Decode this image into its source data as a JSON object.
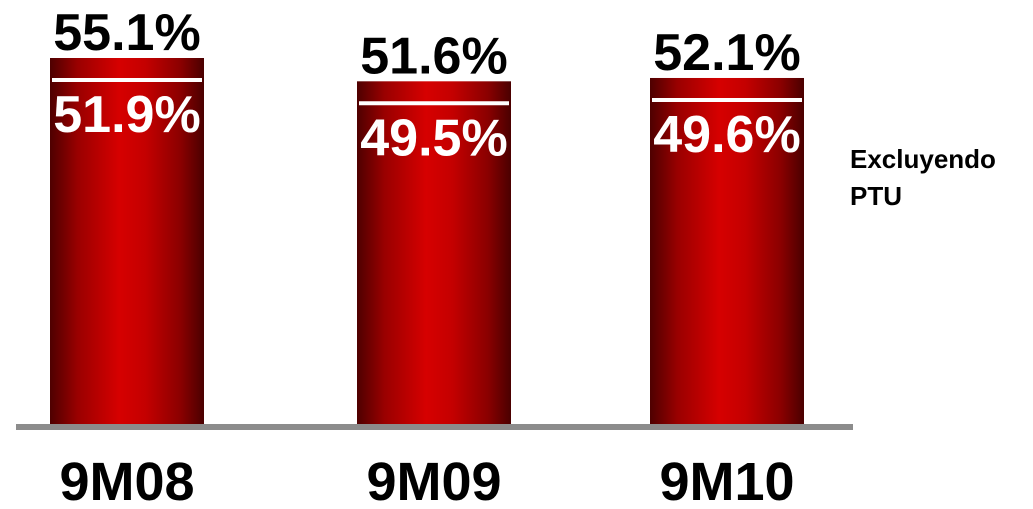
{
  "colors": {
    "bar_mid": "#cc0000",
    "bar_dark": "#5a0000",
    "baseline": "#8c8c8c",
    "separator": "#ffffff"
  },
  "chart_data": {
    "type": "bar",
    "categories": [
      "9M08",
      "9M09",
      "9M10"
    ],
    "series": [
      {
        "values": [
          55.1,
          51.6,
          52.1
        ],
        "labels": [
          "55.1%",
          "51.6%",
          "52.1%"
        ]
      },
      {
        "name": "Excluyendo PTU",
        "values": [
          51.9,
          49.5,
          49.6
        ],
        "labels": [
          "51.9%",
          "49.5%",
          "49.6%"
        ]
      }
    ],
    "annotation": [
      "Excluyendo",
      "PTU"
    ],
    "title": "",
    "xlabel": "",
    "ylabel": "",
    "grid": false,
    "legend": "none"
  }
}
